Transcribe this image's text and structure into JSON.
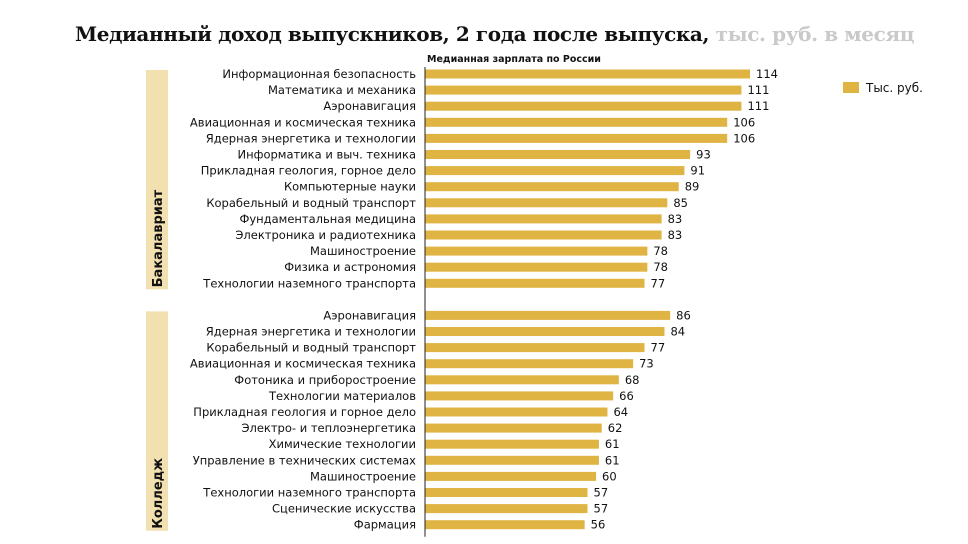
{
  "title": "Медианный доход выпускников, 2 года после выпуска,",
  "title_units": "тыс. руб. в месяц",
  "colors": {
    "bar": "#e0b443",
    "group_band": "#f3e0b0",
    "title_units": "#c9c9c9",
    "axis": "#222222",
    "text": "#111111"
  },
  "chart_data": {
    "type": "bar",
    "orientation": "horizontal",
    "axis_caption": "Медианная зарплата по России",
    "legend": {
      "label": "Тыс. руб.",
      "position": "top-right"
    },
    "xlim": [
      0,
      118
    ],
    "grid": false,
    "groups": [
      {
        "name": "Бакалавриат",
        "categories": [
          "Информационная безопасность",
          "Математика и механика",
          "Аэронавигация",
          "Авиационная и космическая техника",
          "Ядерная энергетика и технологии",
          "Информатика и выч. техника",
          "Прикладная геология, горное дело",
          "Компьютерные науки",
          "Корабельный и водный транспорт",
          "Фундаментальная медицина",
          "Электроника и радиотехника",
          "Машиностроение",
          "Физика и астрономия",
          "Технологии наземного транспорта"
        ],
        "values": [
          114,
          111,
          111,
          106,
          106,
          93,
          91,
          89,
          85,
          83,
          83,
          78,
          78,
          77
        ]
      },
      {
        "name": "Колледж",
        "categories": [
          "Аэронавигация",
          "Ядерная энергетика и технологии",
          "Корабельный и водный транспорт",
          "Авиационная и космическая техника",
          "Фотоника и приборостроение",
          "Технологии материалов",
          "Прикладная геология и горное дело",
          "Электро- и теплоэнергетика",
          "Химические технологии",
          "Управление в технических системах",
          "Машиностроение",
          "Технологии наземного транспорта",
          "Сценические искусства",
          "Фармация"
        ],
        "values": [
          86,
          84,
          77,
          73,
          68,
          66,
          64,
          62,
          61,
          61,
          60,
          57,
          57,
          56
        ]
      }
    ]
  }
}
